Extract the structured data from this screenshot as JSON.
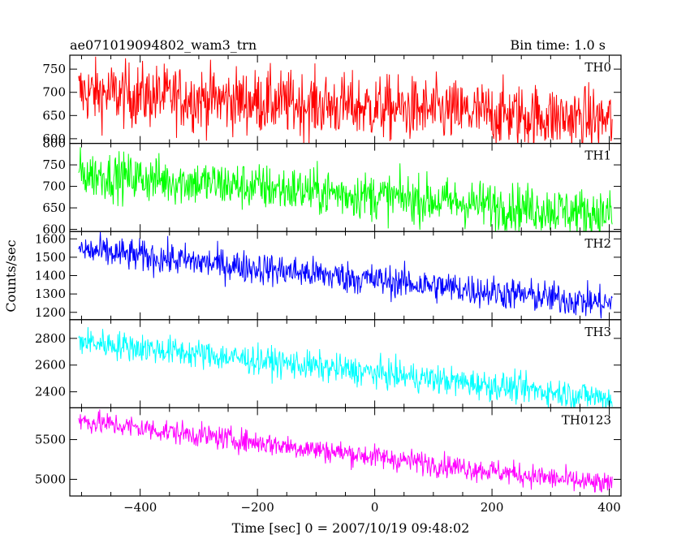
{
  "header": {
    "title": "ae071019094802_wam3_trn",
    "bin_time": "Bin time: 1.0 s"
  },
  "axes": {
    "xlabel": "Time [sec] 0 = 2007/10/19 09:48:02",
    "ylabel": "Counts/sec",
    "xlim": [
      -520,
      420
    ],
    "xticks": [
      -400,
      -200,
      0,
      200,
      400
    ],
    "x_minor_step": 50
  },
  "chart_data": {
    "type": "line",
    "title": "ae071019094802_wam3_trn",
    "xlabel": "Time [sec] 0 = 2007/10/19 09:48:02",
    "ylabel": "Counts/sec",
    "x_range": [
      -505,
      405
    ],
    "bin_time_s": 1.0,
    "panels": [
      {
        "name": "TH0",
        "color": "#ff0000",
        "ylim": [
          590,
          780
        ],
        "yticks": [
          600,
          650,
          700,
          750
        ],
        "trend_start": 700,
        "trend_end": 640,
        "noise": 35,
        "x": [
          -500,
          -300,
          -100,
          0,
          200,
          400
        ],
        "values": [
          700,
          695,
          690,
          680,
          660,
          640
        ]
      },
      {
        "name": "TH1",
        "color": "#00ff00",
        "ylim": [
          595,
          800
        ],
        "yticks": [
          600,
          650,
          700,
          750,
          800
        ],
        "trend_start": 730,
        "trend_end": 635,
        "noise": 28,
        "x": [
          -500,
          -300,
          -100,
          0,
          200,
          400
        ],
        "values": [
          730,
          715,
          700,
          685,
          660,
          635
        ]
      },
      {
        "name": "TH2",
        "color": "#0000ff",
        "ylim": [
          1160,
          1640
        ],
        "yticks": [
          1200,
          1300,
          1400,
          1500,
          1600
        ],
        "trend_start": 1540,
        "trend_end": 1245,
        "noise": 45,
        "x": [
          -500,
          -300,
          -100,
          0,
          200,
          400
        ],
        "values": [
          1540,
          1490,
          1430,
          1380,
          1310,
          1245
        ]
      },
      {
        "name": "TH3",
        "color": "#00ffff",
        "ylim": [
          2280,
          2940
        ],
        "yticks": [
          2400,
          2600,
          2800
        ],
        "trend_start": 2780,
        "trend_end": 2350,
        "noise": 55,
        "x": [
          -500,
          -300,
          -100,
          0,
          200,
          400
        ],
        "values": [
          2780,
          2710,
          2640,
          2570,
          2460,
          2350
        ]
      },
      {
        "name": "TH0123",
        "color": "#ff00ff",
        "ylim": [
          4790,
          5900
        ],
        "yticks": [
          5000,
          5500
        ],
        "trend_start": 5740,
        "trend_end": 4920,
        "noise": 75,
        "x": [
          -500,
          -300,
          -100,
          0,
          200,
          400
        ],
        "values": [
          5740,
          5620,
          5460,
          5350,
          5120,
          4920
        ]
      }
    ]
  }
}
